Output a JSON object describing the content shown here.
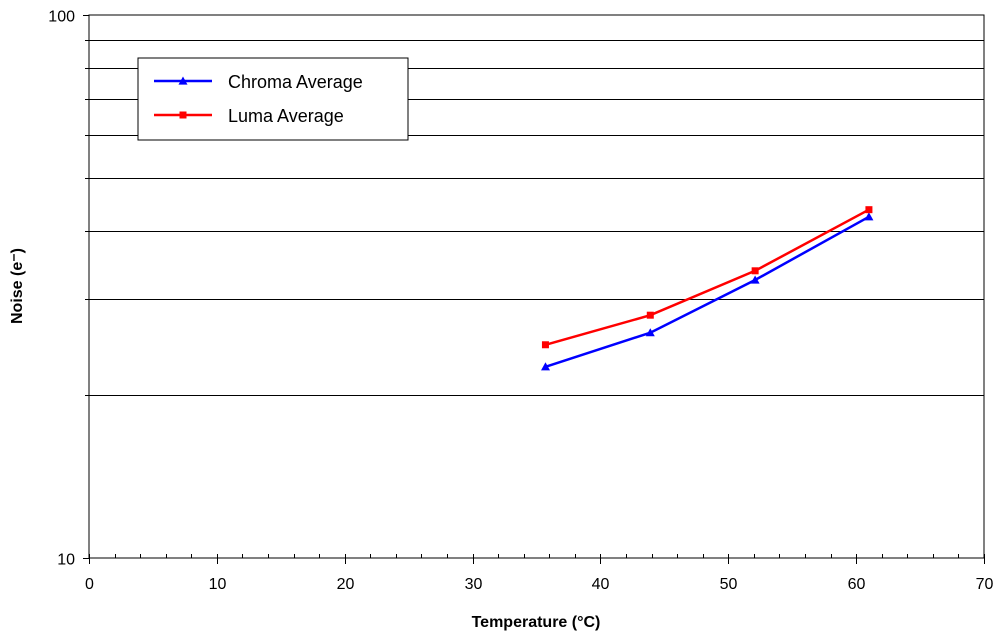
{
  "chart_data": {
    "type": "line",
    "title": "",
    "xlabel": "Temperature (°C)",
    "ylabel": "Noise (e⁻)",
    "xlim": [
      0,
      70
    ],
    "ylim": [
      10,
      100
    ],
    "y_scale": "log",
    "x_ticks": [
      0,
      10,
      20,
      30,
      40,
      50,
      60,
      70
    ],
    "x_tick_labels": [
      "0",
      "10",
      "20",
      "30",
      "40",
      "50",
      "60",
      "70"
    ],
    "x_minor_step": 2,
    "y_ticks": [
      10,
      100
    ],
    "y_tick_labels": [
      "10",
      "100"
    ],
    "y_minor_ticks": [
      20,
      30,
      40,
      50,
      60,
      70,
      80,
      90
    ],
    "grid": "horizontal",
    "legend_position": "top-left",
    "series": [
      {
        "name": "Chroma Average",
        "color": "#0000ff",
        "marker": "triangle",
        "x": [
          35.7,
          43.9,
          52.1,
          61.0
        ],
        "y": [
          22.5,
          26.0,
          32.5,
          42.5
        ]
      },
      {
        "name": "Luma Average",
        "color": "#ff0000",
        "marker": "square",
        "x": [
          35.7,
          43.9,
          52.1,
          61.0
        ],
        "y": [
          24.7,
          28.0,
          33.8,
          43.8
        ]
      }
    ]
  }
}
